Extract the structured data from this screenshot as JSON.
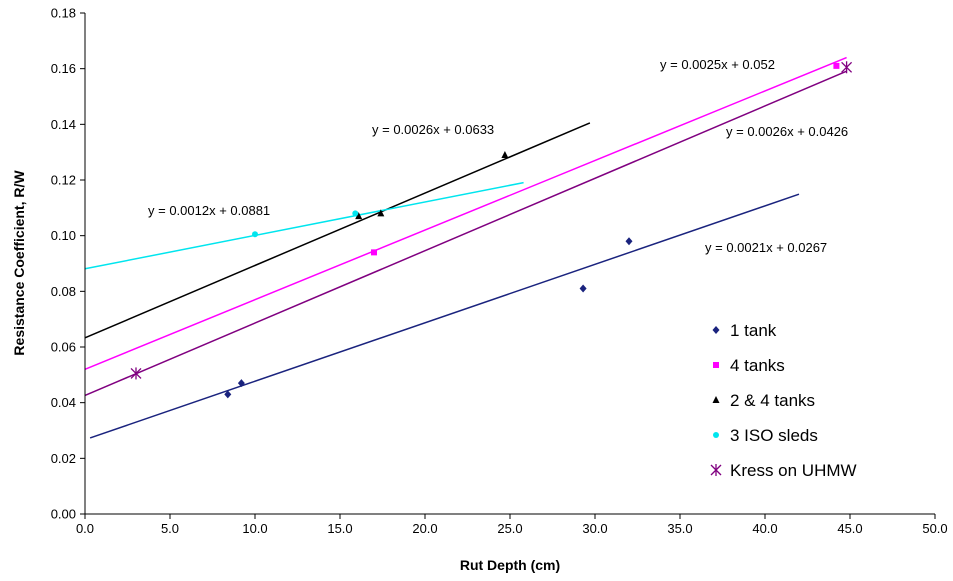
{
  "chart_data": {
    "type": "scatter",
    "xlabel": "Rut Depth (cm)",
    "ylabel": "Resistance Coefficient, R/W",
    "xlim": [
      0,
      50
    ],
    "ylim": [
      0,
      0.18
    ],
    "xticks": [
      "0.0",
      "5.0",
      "10.0",
      "15.0",
      "20.0",
      "25.0",
      "30.0",
      "35.0",
      "40.0",
      "45.0",
      "50.0"
    ],
    "yticks": [
      "0.00",
      "0.02",
      "0.04",
      "0.06",
      "0.08",
      "0.10",
      "0.12",
      "0.14",
      "0.16",
      "0.18"
    ],
    "grid": false,
    "legend_position": "bottom-right",
    "series": [
      {
        "name": "1 tank",
        "color": "#1a237e",
        "marker": "diamond",
        "points": [
          [
            8.4,
            0.043
          ],
          [
            9.2,
            0.047
          ],
          [
            29.3,
            0.081
          ],
          [
            32.0,
            0.098
          ]
        ],
        "trendline": {
          "x_range": [
            0.3,
            42.0
          ],
          "slope": 0.0021,
          "intercept": 0.0267,
          "equation": "y = 0.0021x + 0.0267"
        }
      },
      {
        "name": "4 tanks",
        "color": "#ff00ff",
        "marker": "square",
        "points": [
          [
            17.0,
            0.094
          ],
          [
            44.2,
            0.161
          ]
        ],
        "trendline": {
          "x_range": [
            0.0,
            44.8
          ],
          "slope": 0.0025,
          "intercept": 0.052,
          "equation": "y = 0.0025x + 0.052"
        }
      },
      {
        "name": "2 & 4 tanks",
        "color": "#000000",
        "marker": "triangle",
        "points": [
          [
            16.1,
            0.107
          ],
          [
            17.4,
            0.108
          ],
          [
            24.7,
            0.129
          ]
        ],
        "trendline": {
          "x_range": [
            0.0,
            29.7
          ],
          "slope": 0.0026,
          "intercept": 0.0633,
          "equation": "y = 0.0026x + 0.0633"
        }
      },
      {
        "name": "3 ISO sleds",
        "color": "#00e5ee",
        "marker": "circle",
        "points": [
          [
            10.0,
            0.1005
          ],
          [
            15.9,
            0.108
          ]
        ],
        "trendline": {
          "x_range": [
            0.0,
            25.8
          ],
          "slope": 0.0012,
          "intercept": 0.0881,
          "equation": "y = 0.0012x + 0.0881"
        }
      },
      {
        "name": "Kress on UHMW",
        "color": "#800080",
        "marker": "star",
        "points": [
          [
            3.0,
            0.0505
          ],
          [
            44.8,
            0.1605
          ]
        ],
        "trendline": {
          "x_range": [
            0.0,
            44.8
          ],
          "slope": 0.0026,
          "intercept": 0.0426,
          "equation": "y = 0.0026x + 0.0426"
        }
      }
    ]
  }
}
